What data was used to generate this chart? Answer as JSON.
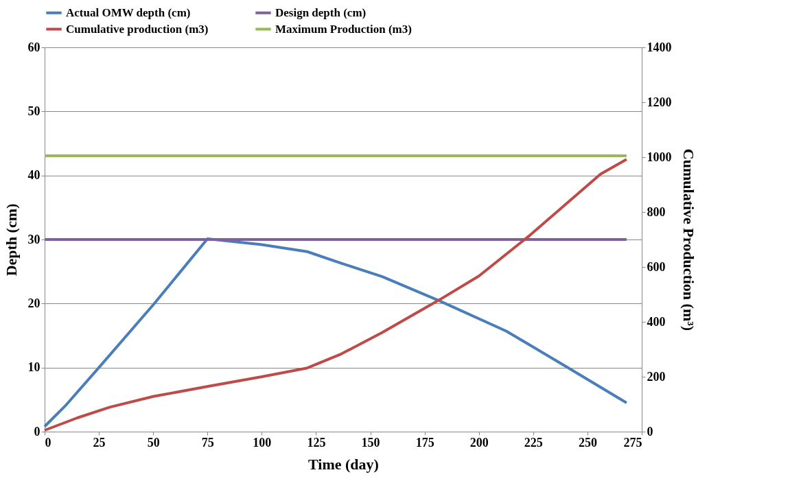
{
  "chart_data": {
    "type": "line",
    "xlabel": "Time (day)",
    "ylabel": "Depth (cm)",
    "y2label": "Cumulative Production (m³)",
    "xlim": [
      0,
      275
    ],
    "xticks": [
      0,
      25,
      50,
      75,
      100,
      125,
      150,
      175,
      200,
      225,
      250,
      275
    ],
    "ylim": [
      0,
      60
    ],
    "yticks": [
      0,
      10,
      20,
      30,
      40,
      50,
      60
    ],
    "y2lim": [
      0,
      1400
    ],
    "y2ticks": [
      0,
      200,
      400,
      600,
      800,
      1000,
      1200,
      1400
    ],
    "grid": "y",
    "legend": "top",
    "marker": "none",
    "line_style": "solid",
    "series": [
      {
        "name": "Actual OMW depth (cm)",
        "color": "#4a7ebb",
        "axis": "y",
        "x": [
          0,
          10,
          25,
          50,
          75,
          100,
          121,
          136.6,
          155.5,
          182,
          212.6,
          241,
          268
        ],
        "values": [
          0.8,
          4.2,
          10,
          19.8,
          30.1,
          29.2,
          28.1,
          26.3,
          24.2,
          20.4,
          15.7,
          10.0,
          4.5
        ]
      },
      {
        "name": "Design depth (cm)",
        "color": "#7d60a0",
        "axis": "y",
        "x": [
          0,
          268
        ],
        "values": [
          30,
          30
        ]
      },
      {
        "name": "Cumulative production (m3)",
        "color": "#be4b48",
        "axis": "y2",
        "x": [
          0,
          15,
          30,
          50,
          74,
          100,
          121,
          136.6,
          155.5,
          182,
          200,
          223.6,
          256,
          268
        ],
        "values": [
          5,
          50,
          89,
          128,
          163,
          200,
          232,
          283,
          361,
          481,
          567,
          716,
          938,
          992
        ]
      },
      {
        "name": "Maximum Production (m3)",
        "color": "#98b954",
        "axis": "y2",
        "x": [
          0,
          268
        ],
        "values": [
          1005,
          1005
        ]
      }
    ]
  }
}
